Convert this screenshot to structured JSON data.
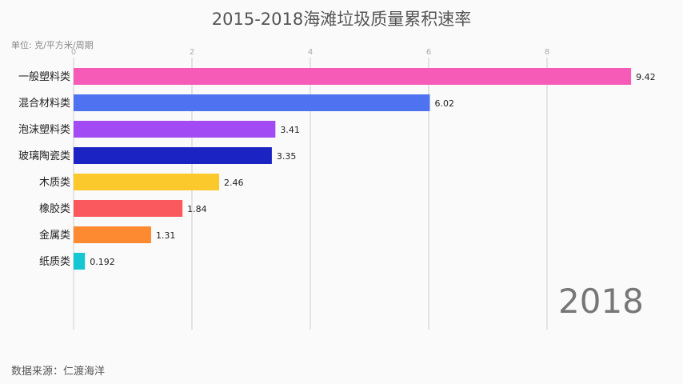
{
  "chart_data": {
    "type": "bar",
    "orientation": "horizontal",
    "title": "2015-2018海滩垃圾质量累积速率",
    "unit_label": "单位: 克/平方米/周期",
    "source": "数据来源：仁渡海洋",
    "period_label": "2018",
    "categories": [
      "一般塑料类",
      "混合材料类",
      "泡沫塑料类",
      "玻璃陶瓷类",
      "木质类",
      "橡胶类",
      "金属类",
      "纸质类"
    ],
    "values": [
      9.42,
      6.02,
      3.41,
      3.35,
      2.46,
      1.84,
      1.31,
      0.192
    ],
    "value_labels": [
      "9.42",
      "6.02",
      "3.41",
      "3.35",
      "2.46",
      "1.84",
      "1.31",
      "0.192"
    ],
    "colors": [
      "#f75bb8",
      "#4f73f0",
      "#a24bf5",
      "#1b24c2",
      "#fcc92c",
      "#fa5a5e",
      "#fd8a30",
      "#16c6d3"
    ],
    "xticks": [
      "0",
      "2",
      "4",
      "6",
      "8"
    ],
    "xlim": [
      0,
      9.42
    ],
    "grid": true
  }
}
